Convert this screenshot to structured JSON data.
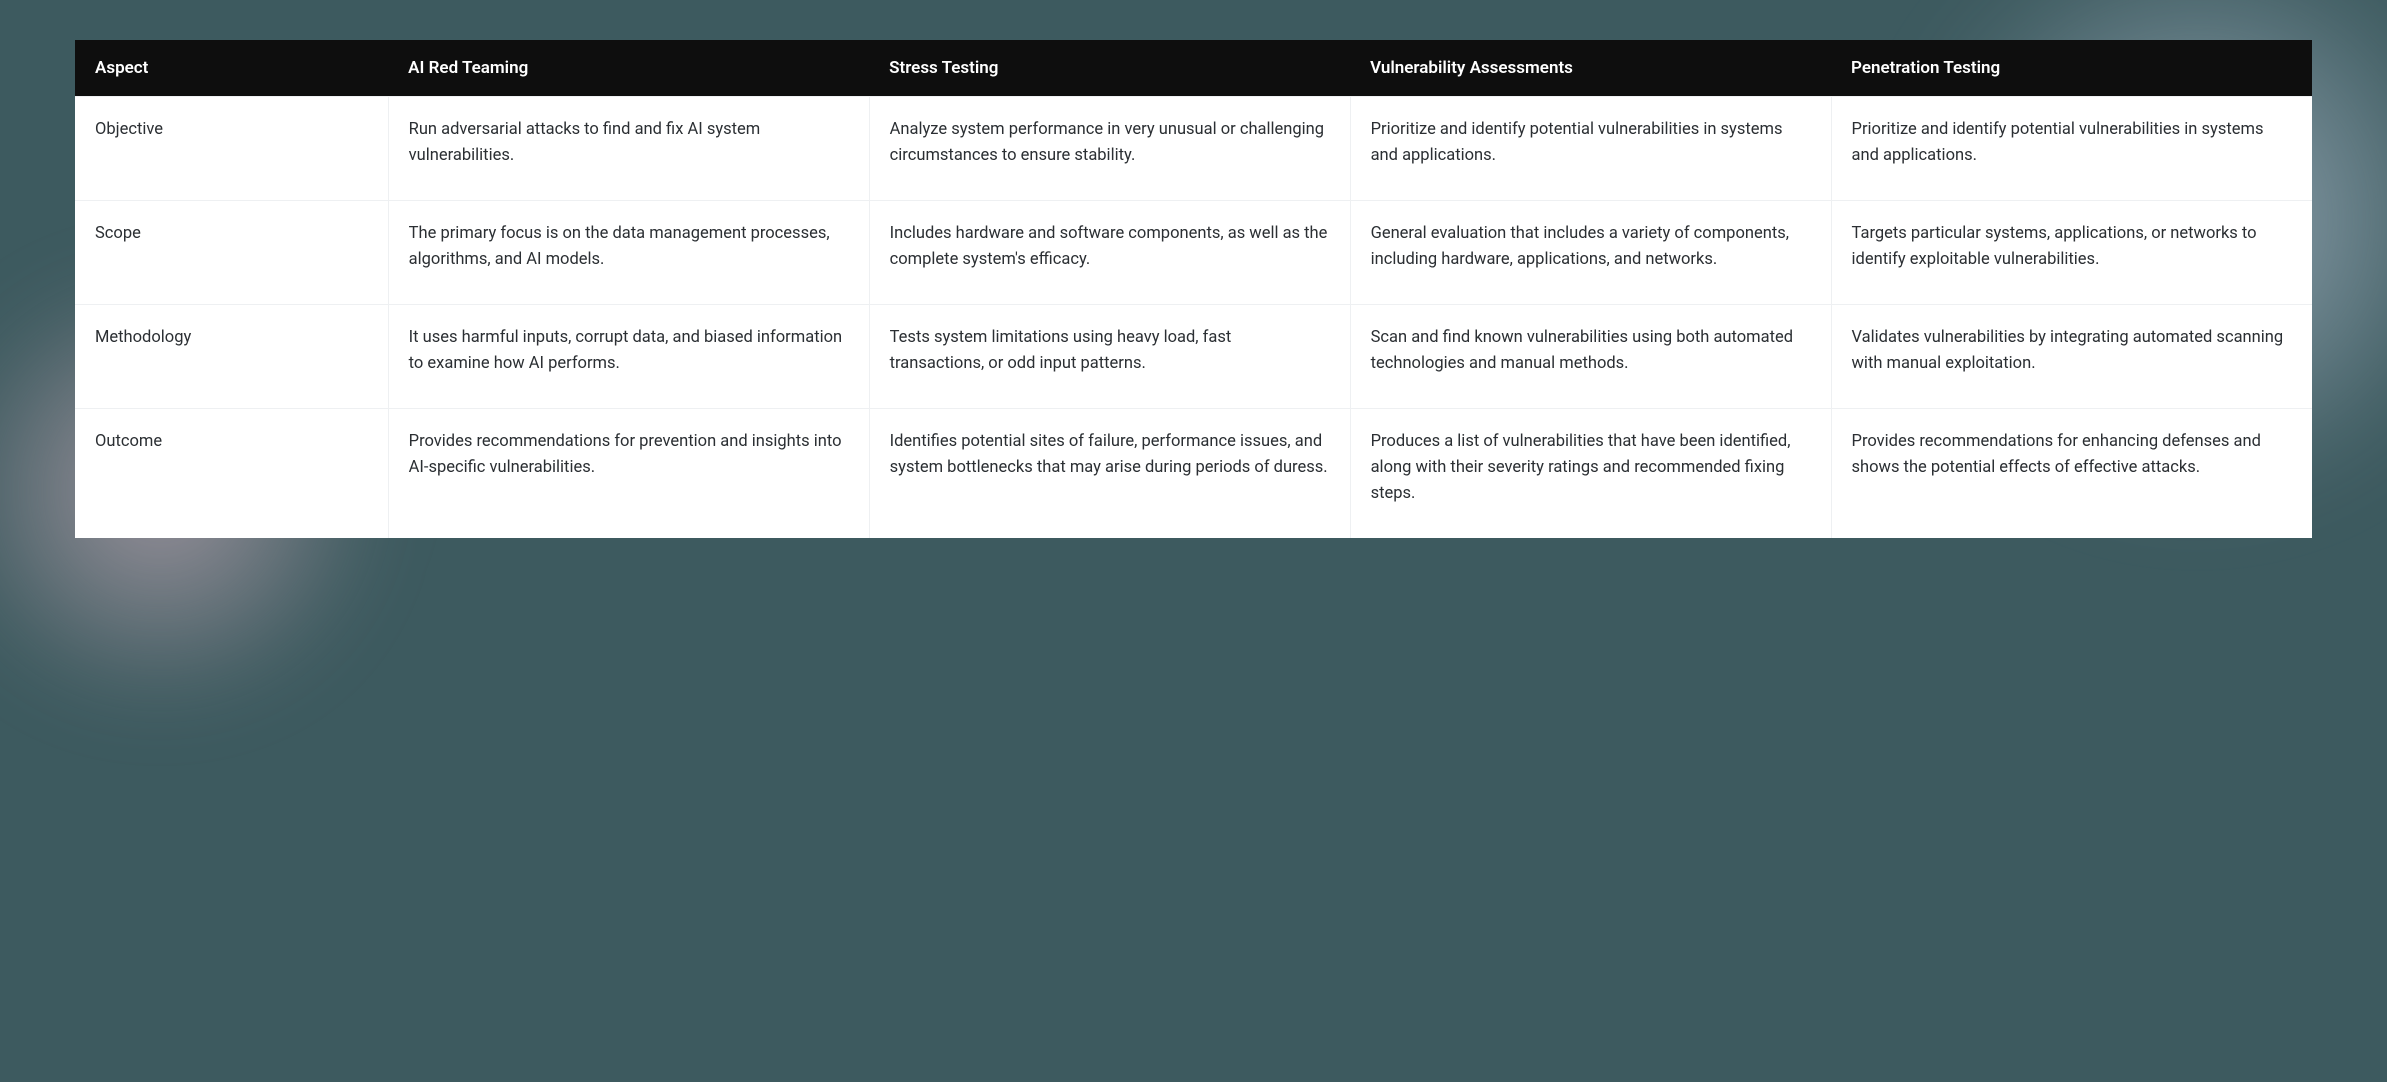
{
  "table": {
    "type": "table",
    "background_color": "#ffffff",
    "header_bg": "#0e0e0e",
    "header_fg": "#ffffff",
    "body_fg": "#2b2f33",
    "grid_color": "#eef0f2",
    "header_fontsize": 17,
    "header_fontweight": 600,
    "body_fontsize": 16.5,
    "body_lineheight": 1.55,
    "column_widths_pct": [
      14,
      21.5,
      21.5,
      21.5,
      21.5
    ],
    "columns": [
      "Aspect",
      "AI Red Teaming",
      "Stress Testing",
      "Vulnerability Assessments",
      "Penetration Testing"
    ],
    "rows": [
      {
        "aspect": "Objective",
        "cells": [
          "Run adversarial attacks to find and fix AI system vulnerabilities.",
          "Analyze system performance in very unusual or challenging circumstances to ensure stability.",
          "Prioritize and identify potential vulnerabilities in systems and applications.",
          "Prioritize and identify potential vulnerabilities in systems and applications."
        ]
      },
      {
        "aspect": "Scope",
        "cells": [
          "The primary focus is on the data management processes, algorithms, and AI models.",
          "Includes hardware and software components, as well as the complete system's efficacy.",
          "General evaluation that includes a variety of components, including hardware, applications, and networks.",
          "Targets particular systems, applications, or networks to identify exploitable vulnerabilities."
        ]
      },
      {
        "aspect": "Methodology",
        "cells": [
          "It uses harmful inputs, corrupt data, and biased information to examine how AI performs.",
          "Tests system limitations using heavy load, fast transactions, or odd input patterns.",
          "Scan and find known vulnerabilities using both automated technologies and manual methods.",
          "Validates vulnerabilities by integrating automated scanning with manual exploitation."
        ]
      },
      {
        "aspect": "Outcome",
        "cells": [
          "Provides recommendations for prevention and insights into AI-specific vulnerabilities.",
          "Identifies potential sites of failure, performance issues, and system bottlenecks that may arise during periods of duress.",
          "Produces a list of vulnerabilities that have been identified, along with their severity ratings and recommended fixing steps.",
          "Provides recommendations for enhancing defenses and shows the potential effects of effective attacks."
        ]
      }
    ]
  },
  "page": {
    "bg_color": "#3d5a5f",
    "glow_left_color": "rgba(244,200,215,0.55)",
    "glow_right_color": "rgba(225,235,255,0.55)"
  }
}
